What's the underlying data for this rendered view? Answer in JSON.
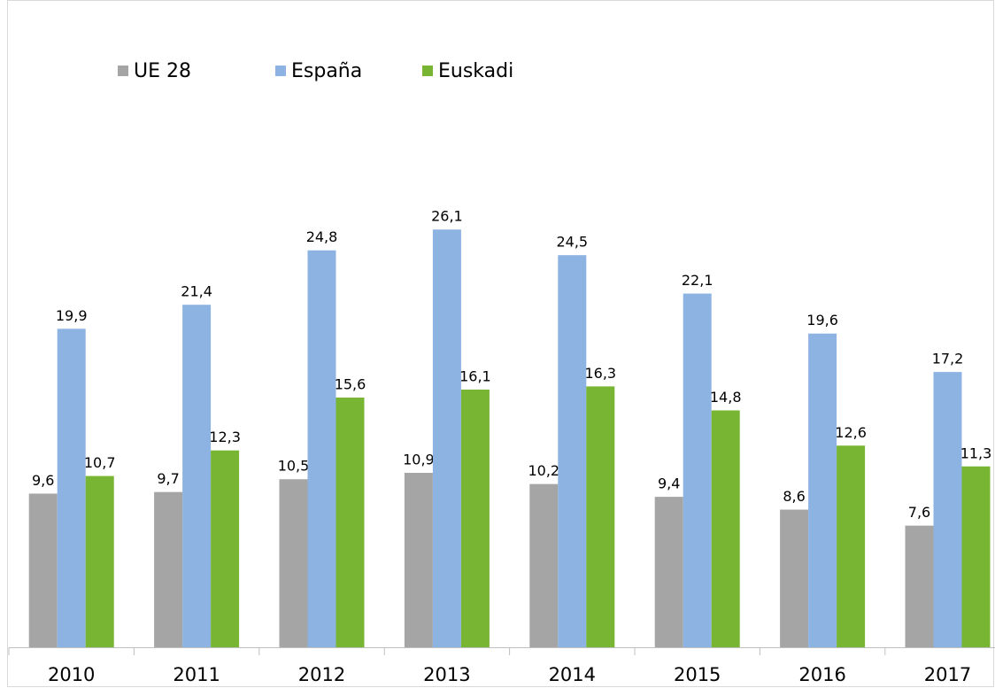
{
  "chart_data": {
    "type": "bar",
    "categories": [
      "2010",
      "2011",
      "2012",
      "2013",
      "2014",
      "2015",
      "2016",
      "2017"
    ],
    "series": [
      {
        "name": "UE 28",
        "color": "#a5a5a5",
        "values": [
          9.6,
          9.7,
          10.5,
          10.9,
          10.2,
          9.4,
          8.6,
          7.6
        ],
        "value_labels": [
          "9,6",
          "9,7",
          "10,5",
          "10,9",
          "10,2",
          "9,4",
          "8,6",
          "7,6"
        ]
      },
      {
        "name": "España",
        "color": "#8db3e2",
        "values": [
          19.9,
          21.4,
          24.8,
          26.1,
          24.5,
          22.1,
          19.6,
          17.2
        ],
        "value_labels": [
          "19,9",
          "21,4",
          "24,8",
          "26,1",
          "24,5",
          "22,1",
          "19,6",
          "17,2"
        ]
      },
      {
        "name": "Euskadi",
        "color": "#77b533",
        "values": [
          10.7,
          12.3,
          15.6,
          16.1,
          16.3,
          14.8,
          12.6,
          11.3
        ],
        "value_labels": [
          "10,7",
          "12,3",
          "15,6",
          "16,1",
          "16,3",
          "14,8",
          "12,6",
          "11,3"
        ]
      }
    ],
    "ylim": [
      0,
      40
    ],
    "legend": "top-left"
  }
}
